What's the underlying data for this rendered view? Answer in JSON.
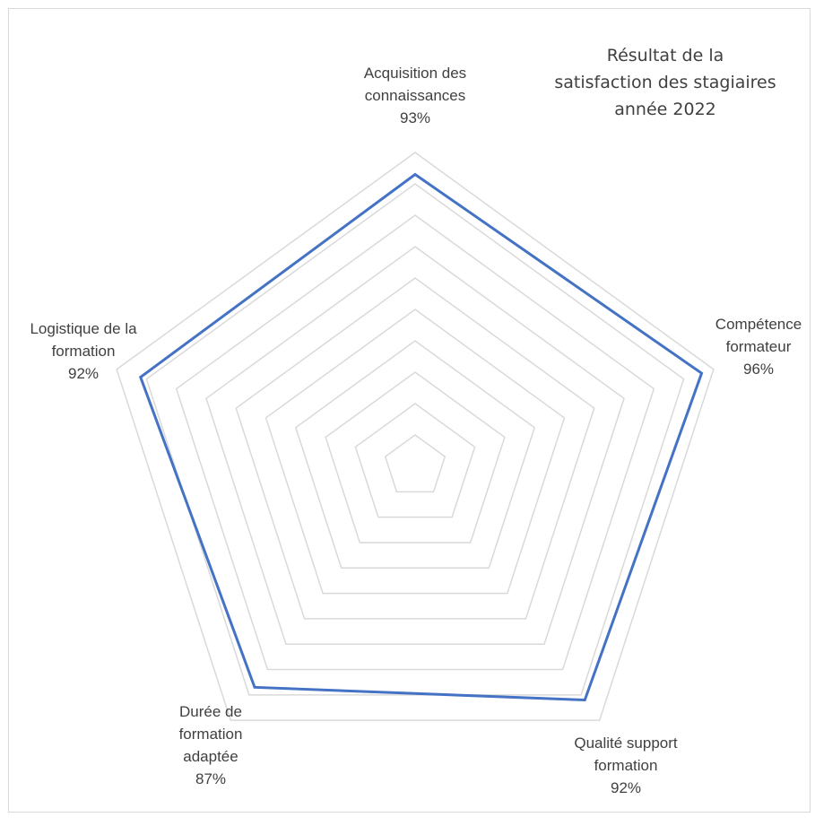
{
  "chart_data": {
    "type": "radar",
    "title": [
      "Résultat de la",
      "satisfaction des stagiaires",
      "année 2022"
    ],
    "categories": [
      {
        "label_lines": [
          "Acquisition des",
          "connaissances"
        ],
        "value_label": "93%"
      },
      {
        "label_lines": [
          "Compétence",
          "formateur"
        ],
        "value_label": "96%"
      },
      {
        "label_lines": [
          "Qualité support",
          "formation"
        ],
        "value_label": "92%"
      },
      {
        "label_lines": [
          "Durée de",
          "formation",
          "adaptée"
        ],
        "value_label": "87%"
      },
      {
        "label_lines": [
          "Logistique de la",
          "formation"
        ],
        "value_label": "92%"
      }
    ],
    "series": [
      {
        "values": [
          93,
          96,
          92,
          87,
          92
        ]
      }
    ],
    "rlim": [
      0,
      100
    ],
    "grid": true,
    "legend": "none",
    "colors": {
      "series": "#4472c4",
      "grid": "#d9d9d9",
      "text": "#404040"
    }
  }
}
